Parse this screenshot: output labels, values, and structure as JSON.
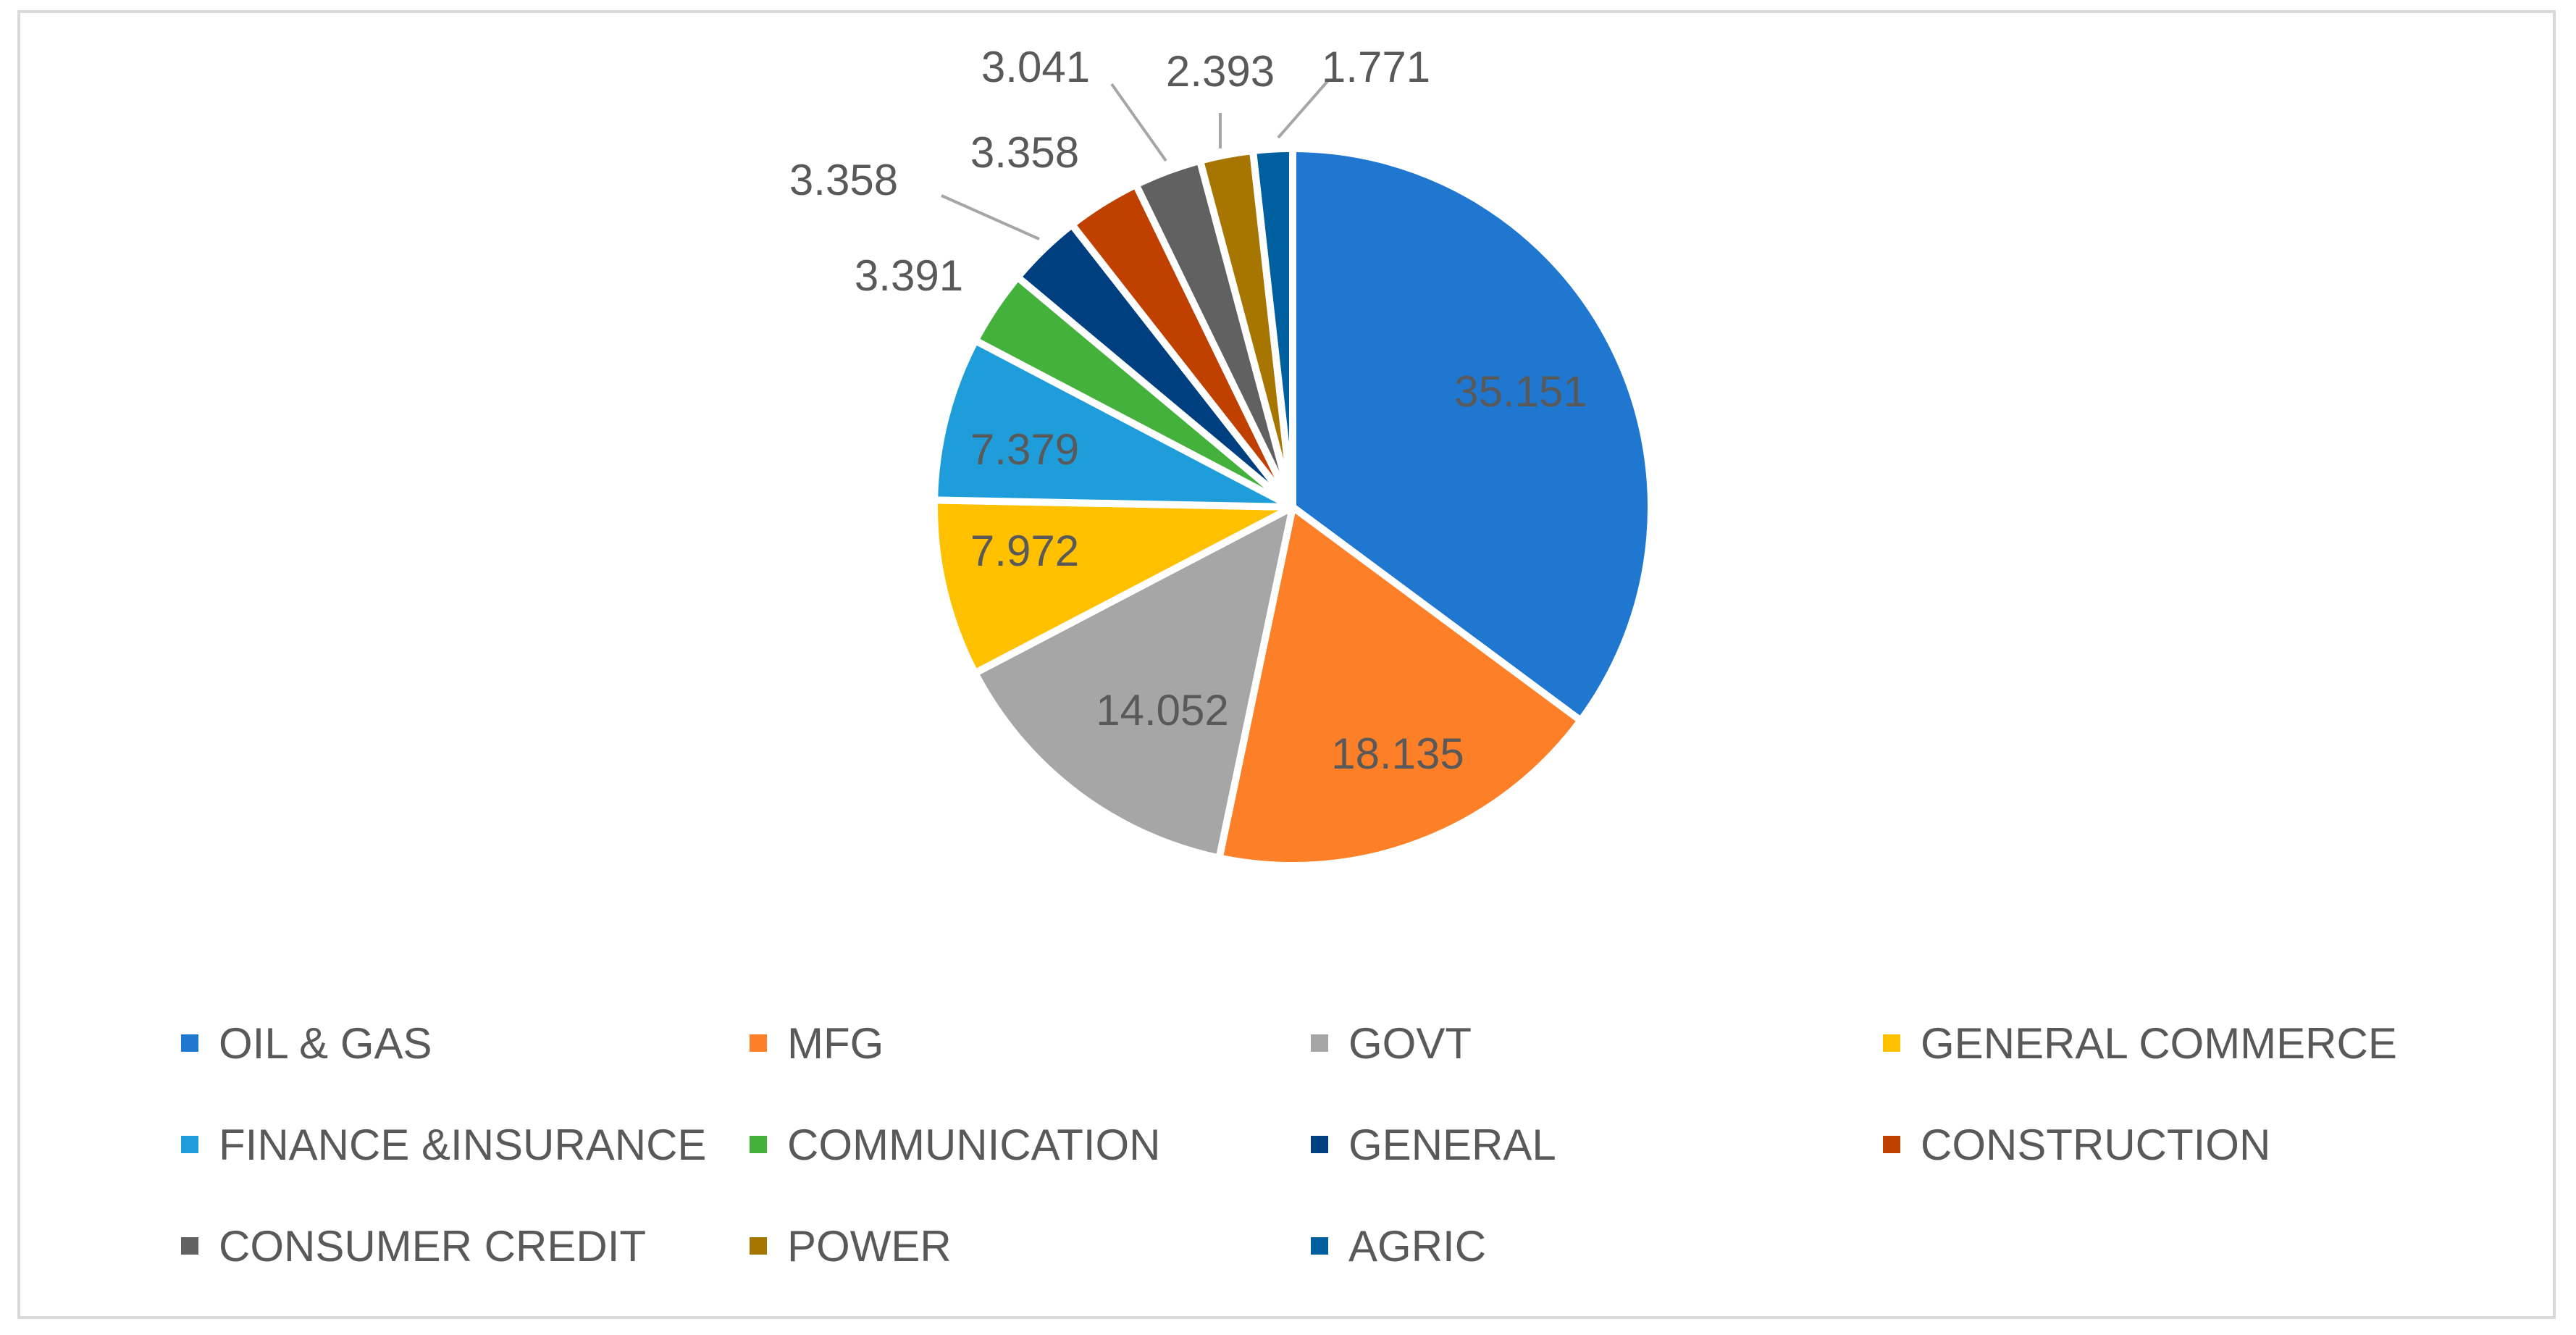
{
  "chart_data": {
    "type": "pie",
    "title": "",
    "categories": [
      "OIL & GAS",
      "MFG",
      "GOVT",
      "GENERAL COMMERCE",
      "FINANCE &INSURANCE",
      "COMMUNICATION",
      "GENERAL",
      "CONSTRUCTION",
      "CONSUMER CREDIT",
      "POWER",
      "AGRIC"
    ],
    "values": [
      35.151,
      18.135,
      14.052,
      7.972,
      7.379,
      3.391,
      3.358,
      3.358,
      3.041,
      2.393,
      1.771
    ],
    "value_labels": [
      "35.151",
      "18.135",
      "14.052",
      "7.972",
      "7.379",
      "3.391",
      "3.358",
      "3.358",
      "3.041",
      "2.393",
      "1.771"
    ],
    "colors": [
      "#1f77d0",
      "#fd7f27",
      "#a6a6a6",
      "#ffc000",
      "#1f9ddb",
      "#43b13b",
      "#003f7f",
      "#c04000",
      "#616161",
      "#a67600",
      "#005f9e"
    ],
    "start_angle_deg": 0,
    "direction": "clockwise",
    "legend_position": "bottom"
  }
}
